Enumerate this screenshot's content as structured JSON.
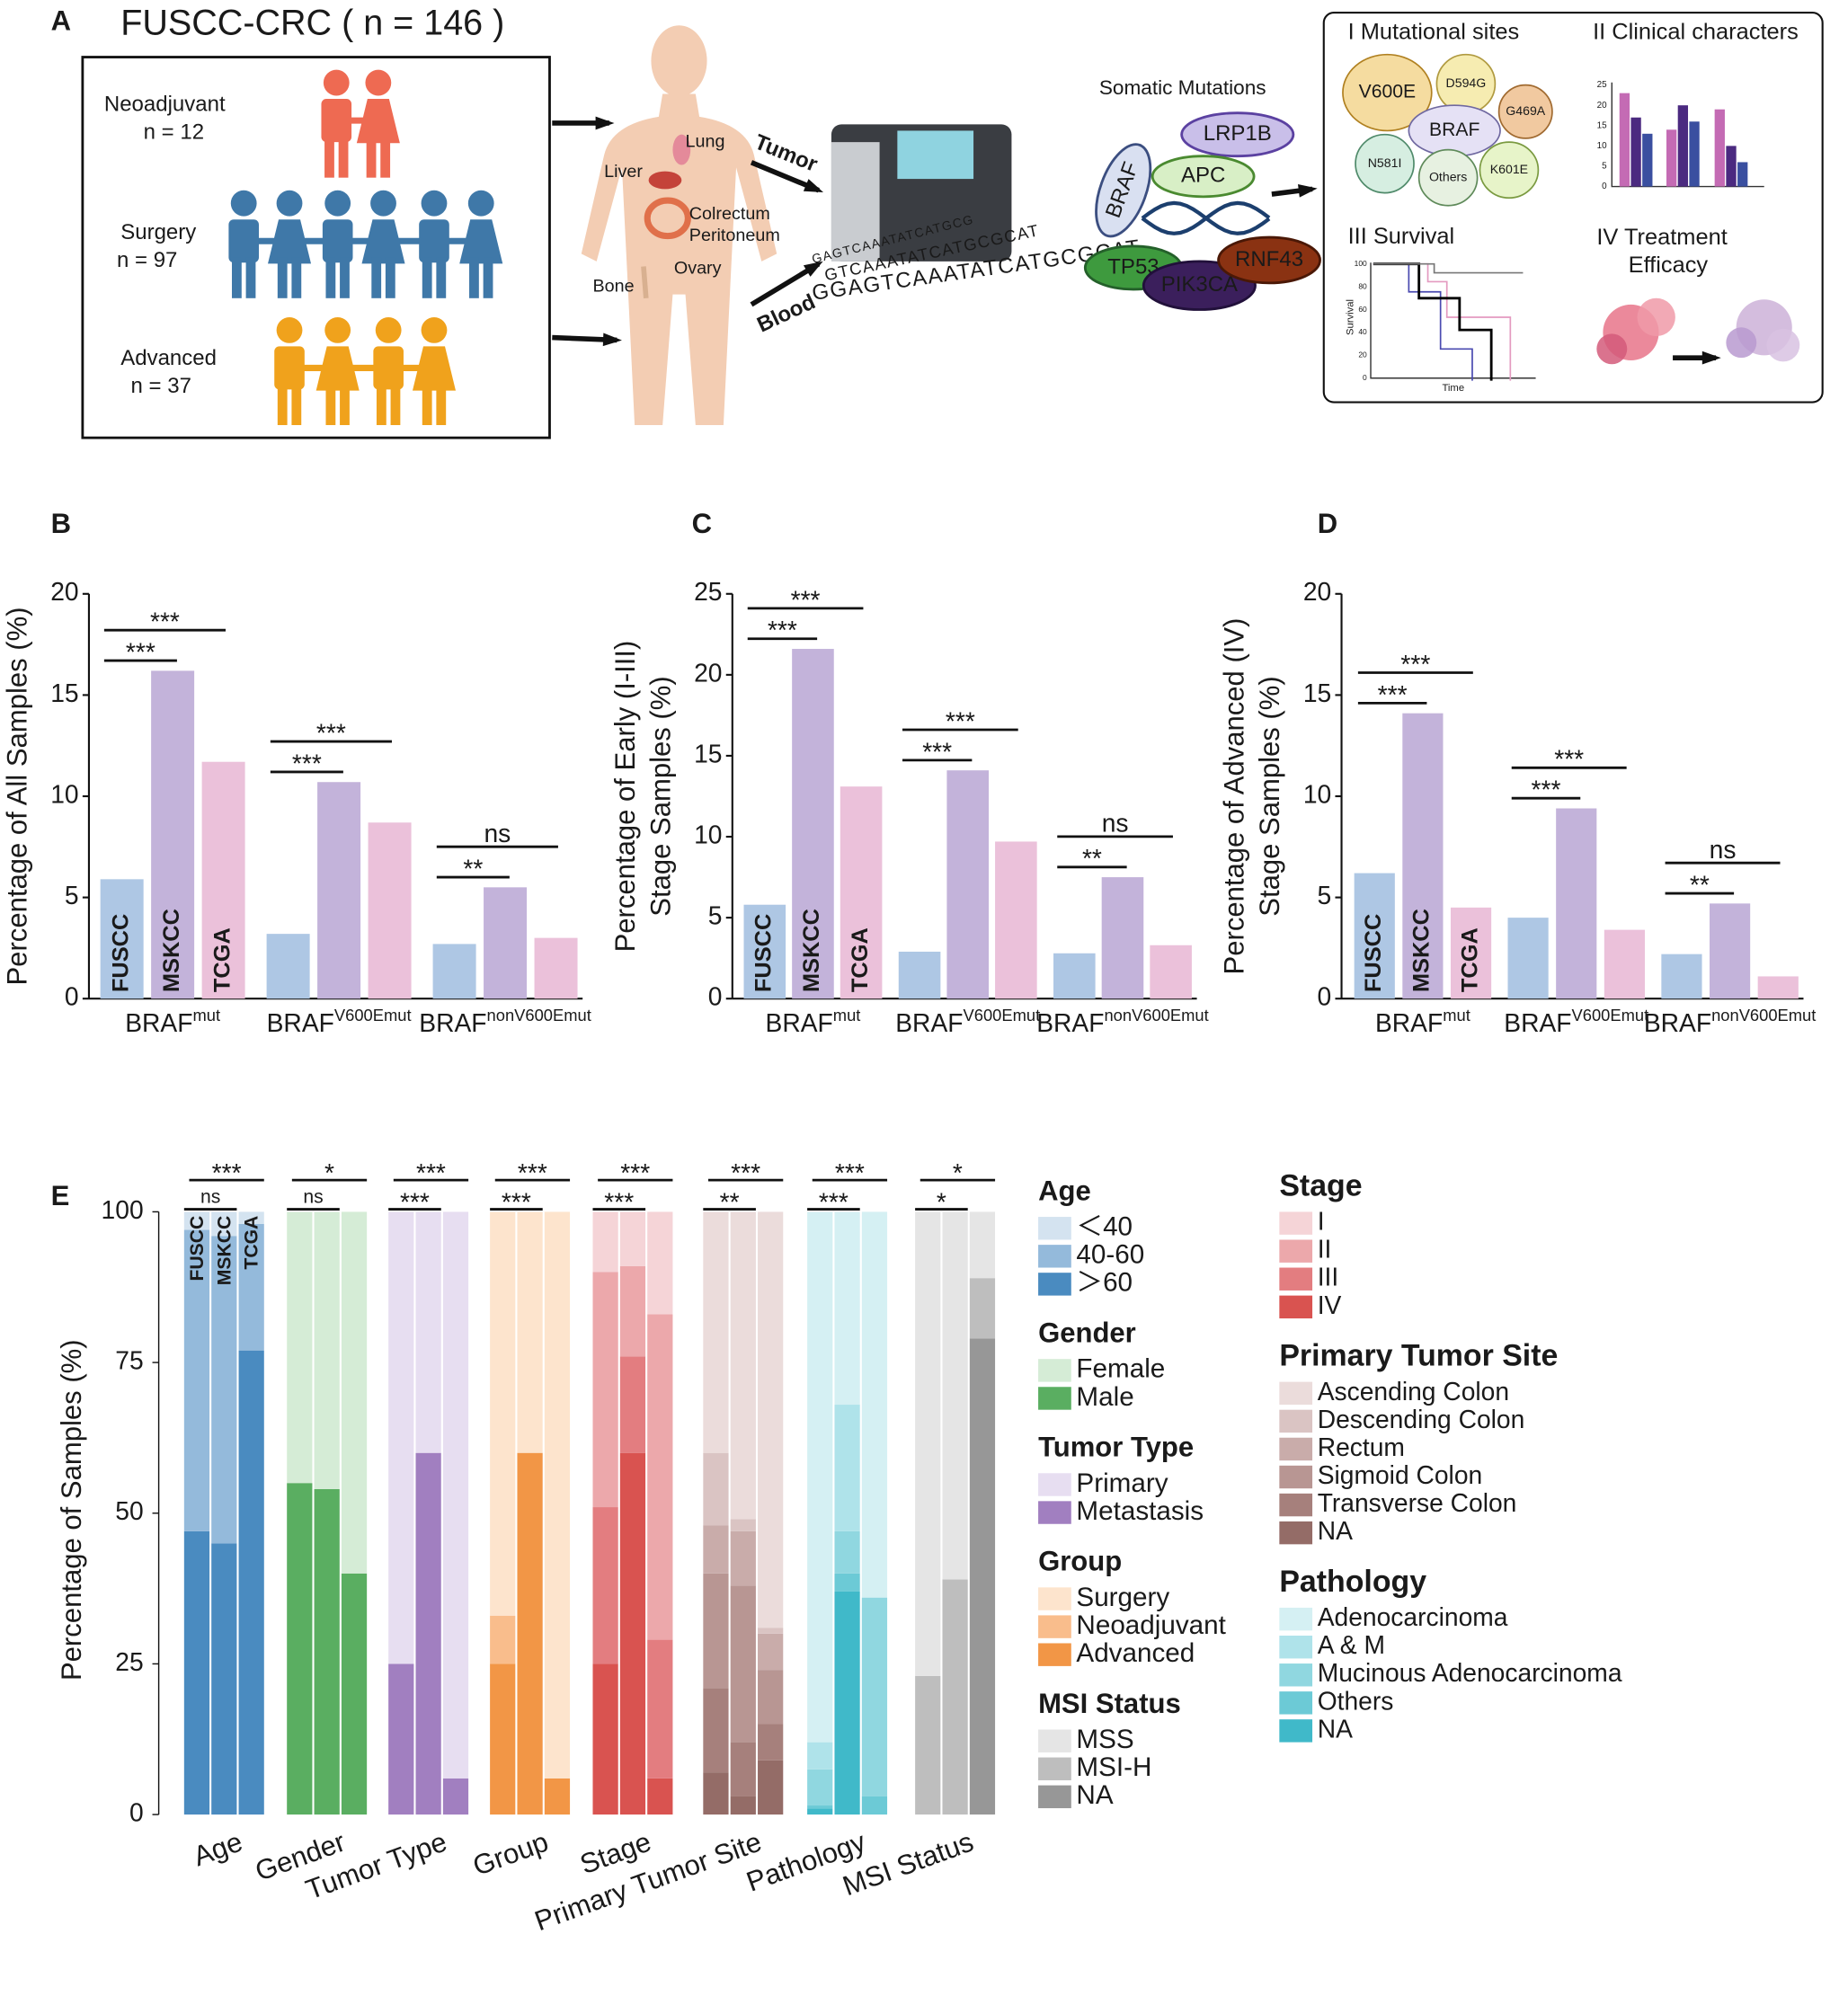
{
  "panel_a": {
    "label": "A",
    "title": "FUSCC-CRC ( n = 146 )",
    "cohorts": [
      {
        "name": "Neoadjuvant",
        "n": "n = 12",
        "color": "#ee6a52"
      },
      {
        "name": "Surgery",
        "n": "n = 97",
        "color": "#3f78a8"
      },
      {
        "name": "Advanced",
        "n": "n = 37",
        "color": "#f0a21c"
      }
    ],
    "organs": [
      "Lung",
      "Liver",
      "Colrectum",
      "Peritoneum",
      "Ovary",
      "Bone"
    ],
    "samples": [
      "Tumor",
      "Blood"
    ],
    "sequences": [
      "GTCAAATATCATGCGCAT",
      "GAGTCAAATATCATGCG",
      "GGAGTCAAATATCATGCGCAT"
    ],
    "somatic_title": "Somatic Mutations",
    "genes": [
      "LRP1B",
      "APC",
      "BRAF",
      "TP53",
      "PIK3CA",
      "RNF43"
    ],
    "sections": [
      "I  Mutational sites",
      "II  Clinical characters",
      "III  Survival",
      "IV  Treatment",
      "Efficacy"
    ],
    "mutational_sites": [
      "V600E",
      "D594G",
      "BRAF",
      "G469A",
      "N581I",
      "Others",
      "K601E"
    ],
    "clinical_ticks": [
      25,
      20,
      15,
      10,
      5,
      0
    ],
    "survival_ticks": [
      100,
      80,
      60,
      40,
      20,
      0
    ],
    "survival_ylabel": "Survival",
    "survival_xlabel": "Time"
  },
  "chart_data": [
    {
      "type": "bar",
      "panel": "B",
      "ylabel": [
        "Percentage of All Samples (%)"
      ],
      "categories": [
        "BRAF",
        "BRAF",
        "BRAF"
      ],
      "category_superscripts": [
        "mut",
        "V600Emut",
        "nonV600Emut"
      ],
      "series": [
        {
          "name": "FUSCC",
          "color": "#aec7e4",
          "values": [
            5.9,
            3.2,
            2.7
          ]
        },
        {
          "name": "MSKCC",
          "color": "#c3b3da",
          "values": [
            16.2,
            10.7,
            5.5
          ]
        },
        {
          "name": "TCGA",
          "color": "#ebc1da",
          "values": [
            11.7,
            8.7,
            3.0
          ]
        }
      ],
      "significance": [
        [
          "***",
          "***"
        ],
        [
          "***",
          "***"
        ],
        [
          "**",
          "ns"
        ]
      ],
      "ylim": [
        0,
        20
      ],
      "yticks": [
        0,
        5,
        10,
        15,
        20
      ]
    },
    {
      "type": "bar",
      "panel": "C",
      "ylabel": [
        "Percentage of Early (I-III)",
        "Stage Samples (%)"
      ],
      "categories": [
        "BRAF",
        "BRAF",
        "BRAF"
      ],
      "category_superscripts": [
        "mut",
        "V600Emut",
        "nonV600Emut"
      ],
      "series": [
        {
          "name": "FUSCC",
          "color": "#aec7e4",
          "values": [
            5.8,
            2.9,
            2.8
          ]
        },
        {
          "name": "MSKCC",
          "color": "#c3b3da",
          "values": [
            21.6,
            14.1,
            7.5
          ]
        },
        {
          "name": "TCGA",
          "color": "#ebc1da",
          "values": [
            13.1,
            9.7,
            3.3
          ]
        }
      ],
      "significance": [
        [
          "***",
          "***"
        ],
        [
          "***",
          "***"
        ],
        [
          "**",
          "ns"
        ]
      ],
      "ylim": [
        0,
        25
      ],
      "yticks": [
        0,
        5,
        10,
        15,
        20,
        25
      ]
    },
    {
      "type": "bar",
      "panel": "D",
      "ylabel": [
        "Percentage of Advanced (IV)",
        "Stage Samples (%)"
      ],
      "categories": [
        "BRAF",
        "BRAF",
        "BRAF"
      ],
      "category_superscripts": [
        "mut",
        "V600Emut",
        "nonV600Emut"
      ],
      "series": [
        {
          "name": "FUSCC",
          "color": "#aec7e4",
          "values": [
            6.2,
            4.0,
            2.2
          ]
        },
        {
          "name": "MSKCC",
          "color": "#c3b3da",
          "values": [
            14.1,
            9.4,
            4.7
          ]
        },
        {
          "name": "TCGA",
          "color": "#ebc1da",
          "values": [
            4.5,
            3.4,
            1.1
          ]
        }
      ],
      "significance": [
        [
          "***",
          "***"
        ],
        [
          "***",
          "***"
        ],
        [
          "**",
          "ns"
        ]
      ],
      "ylim": [
        0,
        20
      ],
      "yticks": [
        0,
        5,
        10,
        15,
        20
      ]
    },
    {
      "type": "stacked_bar",
      "panel": "E",
      "ylabel": "Percentage of Samples (%)",
      "ylim": [
        0,
        100
      ],
      "yticks": [
        0,
        25,
        50,
        75,
        100
      ],
      "series_names": [
        "FUSCC",
        "MSKCC",
        "TCGA"
      ],
      "categories": [
        "Age",
        "Gender",
        "Tumor Type",
        "Group",
        "Stage",
        "Primary Tumor Site",
        "Pathology",
        "MSI Status"
      ],
      "groups": [
        {
          "legend_title": "Age",
          "significance": [
            "ns",
            "***"
          ],
          "segments": [
            {
              "name": "＜40",
              "color": "#d4e3f0",
              "values": [
                3,
                4,
                2
              ]
            },
            {
              "name": "40-60",
              "color": "#94badb",
              "values": [
                50,
                51,
                21
              ]
            },
            {
              "name": "＞60",
              "color": "#4a8bc0",
              "values": [
                47,
                45,
                77
              ]
            }
          ]
        },
        {
          "legend_title": "Gender",
          "significance": [
            "ns",
            "*"
          ],
          "segments": [
            {
              "name": "Female",
              "color": "#d5ecd6",
              "values": [
                45,
                46,
                60
              ]
            },
            {
              "name": "Male",
              "color": "#5aae61",
              "values": [
                55,
                54,
                40
              ]
            }
          ]
        },
        {
          "legend_title": "Tumor Type",
          "significance": [
            "***",
            "***"
          ],
          "segments": [
            {
              "name": "Primary",
              "color": "#e7def1",
              "values": [
                75,
                40,
                94
              ]
            },
            {
              "name": "Metastasis",
              "color": "#a17fc0",
              "values": [
                25,
                60,
                6
              ]
            }
          ]
        },
        {
          "legend_title": "Group",
          "significance": [
            "***",
            "***"
          ],
          "segments": [
            {
              "name": "Surgery",
              "color": "#fde4cd",
              "values": [
                67,
                40,
                94
              ]
            },
            {
              "name": "Neoadjuvant",
              "color": "#f9bd8c",
              "values": [
                8,
                0,
                0
              ]
            },
            {
              "name": "Advanced",
              "color": "#f29646",
              "values": [
                25,
                60,
                6
              ]
            }
          ]
        },
        {
          "legend_title": "Stage",
          "significance": [
            "***",
            "***"
          ],
          "segments": [
            {
              "name": "I",
              "color": "#f5d4d7",
              "values": [
                10,
                9,
                17
              ]
            },
            {
              "name": "II",
              "color": "#eca8ab",
              "values": [
                39,
                15,
                54
              ]
            },
            {
              "name": "III",
              "color": "#e37d80",
              "values": [
                26,
                16,
                23
              ]
            },
            {
              "name": "IV",
              "color": "#d95350",
              "values": [
                25,
                60,
                6
              ]
            }
          ]
        },
        {
          "legend_title": "Primary Tumor Site",
          "significance": [
            "**",
            "***"
          ],
          "segments": [
            {
              "name": "Ascending Colon",
              "color": "#ebdcdb",
              "values": [
                40,
                51,
                69
              ]
            },
            {
              "name": "Descending Colon",
              "color": "#dac4c3",
              "values": [
                12,
                2,
                1
              ]
            },
            {
              "name": "Rectum",
              "color": "#c9acaa",
              "values": [
                8,
                9,
                6
              ]
            },
            {
              "name": "Sigmoid Colon",
              "color": "#b89693",
              "values": [
                19,
                26,
                9
              ]
            },
            {
              "name": "Transverse Colon",
              "color": "#a6807c",
              "values": [
                14,
                9,
                6
              ]
            },
            {
              "name": "NA",
              "color": "#946c67",
              "values": [
                7,
                3,
                9
              ]
            }
          ]
        },
        {
          "legend_title": "Pathology",
          "significance": [
            "***",
            "***"
          ],
          "segments": [
            {
              "name": "Adenocarcinoma",
              "color": "#d5f0f3",
              "values": [
                88,
                32,
                64
              ]
            },
            {
              "name": "A & M",
              "color": "#afe3ea",
              "values": [
                4.5,
                21,
                0
              ]
            },
            {
              "name": "Mucinous Adenocarcinoma",
              "color": "#90d7e0",
              "values": [
                6,
                7,
                33
              ]
            },
            {
              "name": "Others",
              "color": "#6ccad6",
              "values": [
                0.5,
                3,
                3
              ]
            },
            {
              "name": "NA",
              "color": "#40b9c9",
              "values": [
                1,
                37,
                0
              ]
            }
          ]
        },
        {
          "legend_title": "MSI Status",
          "significance": [
            "*",
            "*"
          ],
          "segments": [
            {
              "name": "MSS",
              "color": "#e5e5e5",
              "values": [
                77,
                61,
                11
              ]
            },
            {
              "name": "MSI-H",
              "color": "#bebebe",
              "values": [
                23,
                39,
                10
              ]
            },
            {
              "name": "NA",
              "color": "#979797",
              "values": [
                0,
                0,
                79
              ]
            }
          ]
        }
      ]
    }
  ]
}
